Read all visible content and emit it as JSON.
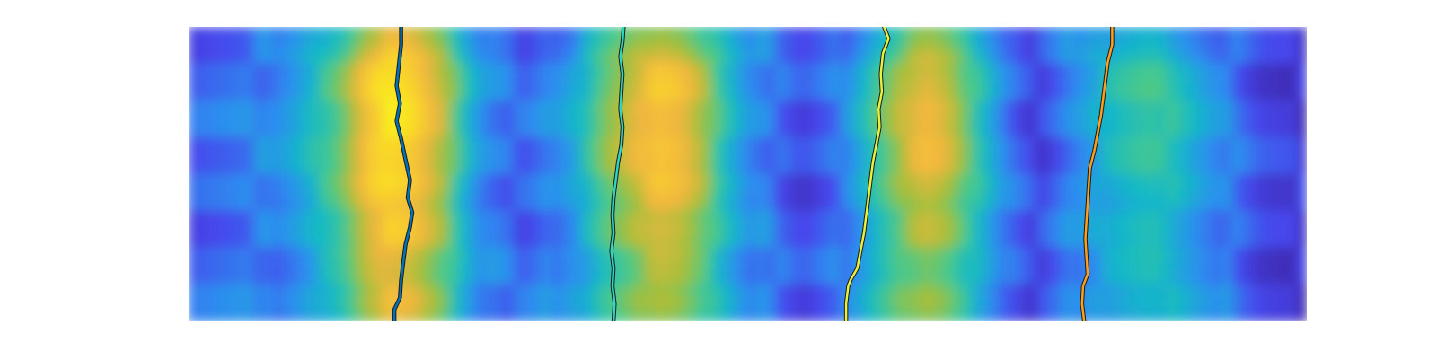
{
  "chart_data": {
    "type": "heatmap",
    "title": "",
    "xlabel": "",
    "ylabel": "",
    "axes_visible": false,
    "grid": false,
    "legend": "none",
    "colormap": "parula",
    "colormap_stops": [
      "#3e26a8",
      "#4646ec",
      "#2d8df0",
      "#14b8c8",
      "#47c98d",
      "#a6bf3a",
      "#f2b63f",
      "#f9d52a",
      "#f9fb15"
    ],
    "heatmap_columns": [
      {
        "x": [
          0.0,
          0.07,
          0.1,
          0.14,
          0.16,
          0.18,
          0.2,
          0.23,
          0.25,
          0.27,
          0.3
        ],
        "level": [
          0.1,
          0.18,
          0.3,
          0.55,
          0.8,
          0.92,
          0.86,
          0.62,
          0.34,
          0.18,
          0.1
        ]
      },
      {
        "x": [
          0.3,
          0.33,
          0.35,
          0.37,
          0.4,
          0.42,
          0.44,
          0.46,
          0.48,
          0.5,
          0.53,
          0.55
        ],
        "level": [
          0.1,
          0.22,
          0.32,
          0.52,
          0.7,
          0.8,
          0.76,
          0.62,
          0.4,
          0.24,
          0.12,
          0.05
        ]
      },
      {
        "x": [
          0.55,
          0.58,
          0.6,
          0.62,
          0.64,
          0.66,
          0.68,
          0.7,
          0.72,
          0.74,
          0.76
        ],
        "level": [
          0.05,
          0.15,
          0.3,
          0.48,
          0.64,
          0.74,
          0.66,
          0.48,
          0.3,
          0.12,
          0.04
        ]
      },
      {
        "x": [
          0.76,
          0.78,
          0.8,
          0.82,
          0.84,
          0.86,
          0.88,
          0.9,
          0.93,
          0.96,
          1.0
        ],
        "level": [
          0.04,
          0.14,
          0.26,
          0.34,
          0.4,
          0.44,
          0.4,
          0.3,
          0.18,
          0.05,
          0.02
        ]
      }
    ],
    "row_profile": {
      "y": [
        0.0,
        0.06,
        0.14,
        0.22,
        0.3,
        0.38,
        0.46,
        0.54,
        0.62,
        0.7,
        0.78,
        0.86,
        0.94,
        1.0
      ],
      "weight": [
        0.55,
        0.66,
        0.92,
        1.0,
        0.98,
        0.96,
        0.94,
        0.9,
        0.74,
        0.8,
        0.66,
        0.62,
        0.72,
        0.58
      ]
    },
    "series": [
      {
        "color": "#0072bd",
        "points": [
          [
            0.19,
            0.0
          ],
          [
            0.19,
            0.06
          ],
          [
            0.188,
            0.13
          ],
          [
            0.186,
            0.2
          ],
          [
            0.189,
            0.26
          ],
          [
            0.186,
            0.32
          ],
          [
            0.19,
            0.38
          ],
          [
            0.194,
            0.45
          ],
          [
            0.198,
            0.52
          ],
          [
            0.196,
            0.58
          ],
          [
            0.2,
            0.63
          ],
          [
            0.198,
            0.68
          ],
          [
            0.194,
            0.74
          ],
          [
            0.192,
            0.8
          ],
          [
            0.19,
            0.86
          ],
          [
            0.189,
            0.92
          ],
          [
            0.184,
            0.96
          ],
          [
            0.184,
            1.0
          ]
        ]
      },
      {
        "color": "#2bd6c4",
        "points": [
          [
            0.389,
            0.0
          ],
          [
            0.388,
            0.05
          ],
          [
            0.386,
            0.1
          ],
          [
            0.388,
            0.16
          ],
          [
            0.387,
            0.22
          ],
          [
            0.386,
            0.28
          ],
          [
            0.388,
            0.34
          ],
          [
            0.387,
            0.4
          ],
          [
            0.384,
            0.46
          ],
          [
            0.382,
            0.52
          ],
          [
            0.38,
            0.58
          ],
          [
            0.379,
            0.64
          ],
          [
            0.38,
            0.7
          ],
          [
            0.378,
            0.76
          ],
          [
            0.38,
            0.82
          ],
          [
            0.379,
            0.88
          ],
          [
            0.381,
            0.94
          ],
          [
            0.38,
            1.0
          ]
        ]
      },
      {
        "color": "#e8f23a",
        "points": [
          [
            0.622,
            0.0
          ],
          [
            0.626,
            0.04
          ],
          [
            0.621,
            0.09
          ],
          [
            0.619,
            0.16
          ],
          [
            0.62,
            0.22
          ],
          [
            0.617,
            0.28
          ],
          [
            0.618,
            0.34
          ],
          [
            0.615,
            0.4
          ],
          [
            0.612,
            0.46
          ],
          [
            0.61,
            0.52
          ],
          [
            0.608,
            0.58
          ],
          [
            0.606,
            0.64
          ],
          [
            0.604,
            0.7
          ],
          [
            0.601,
            0.76
          ],
          [
            0.598,
            0.82
          ],
          [
            0.592,
            0.86
          ],
          [
            0.59,
            0.88
          ],
          [
            0.588,
            0.94
          ],
          [
            0.588,
            1.0
          ]
        ]
      },
      {
        "color": "#ff9e1f",
        "points": [
          [
            0.826,
            0.0
          ],
          [
            0.826,
            0.06
          ],
          [
            0.822,
            0.12
          ],
          [
            0.82,
            0.18
          ],
          [
            0.818,
            0.24
          ],
          [
            0.816,
            0.3
          ],
          [
            0.813,
            0.36
          ],
          [
            0.81,
            0.42
          ],
          [
            0.806,
            0.48
          ],
          [
            0.805,
            0.54
          ],
          [
            0.804,
            0.6
          ],
          [
            0.803,
            0.66
          ],
          [
            0.802,
            0.72
          ],
          [
            0.803,
            0.78
          ],
          [
            0.804,
            0.84
          ],
          [
            0.8,
            0.88
          ],
          [
            0.799,
            0.94
          ],
          [
            0.801,
            1.0
          ]
        ]
      }
    ]
  }
}
